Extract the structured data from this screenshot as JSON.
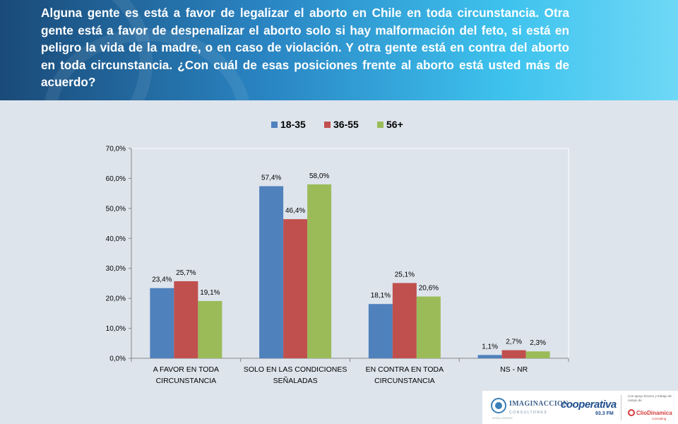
{
  "question": "Alguna gente es está a favor de legalizar el aborto en Chile en toda circunstancia. Otra gente está a favor de despenalizar el aborto solo si hay malformación del feto, si está en peligro la vida de la madre, o en caso de violación. Y otra gente está en contra del aborto en toda circunstancia. ¿Con cuál de esas posiciones frente al aborto está usted más de acuerdo?",
  "chart_data": {
    "type": "bar",
    "title": "",
    "xlabel": "",
    "ylabel": "",
    "categories": [
      [
        "A FAVOR EN TODA",
        "CIRCUNSTANCIA"
      ],
      [
        "SOLO EN LAS CONDICIONES",
        "SEÑALADAS"
      ],
      [
        "EN CONTRA EN TODA",
        "CIRCUNSTANCIA"
      ],
      [
        "NS - NR"
      ]
    ],
    "series": [
      {
        "name": "18-35",
        "color": "#4f81bd",
        "values": [
          23.4,
          57.4,
          18.1,
          1.1
        ],
        "labels": [
          "23,4%",
          "57,4%",
          "18,1%",
          "1,1%"
        ]
      },
      {
        "name": "36-55",
        "color": "#c0504d",
        "values": [
          25.7,
          46.4,
          25.1,
          2.7
        ],
        "labels": [
          "25,7%",
          "46,4%",
          "25,1%",
          "2,7%"
        ]
      },
      {
        "name": "56+",
        "color": "#9bbb59",
        "values": [
          19.1,
          58.0,
          20.6,
          2.3
        ],
        "labels": [
          "19,1%",
          "58,0%",
          "20,6%",
          "2,3%"
        ]
      }
    ],
    "ylim": [
      0,
      70
    ],
    "yticks": [
      {
        "value": 0,
        "label": "0,0%"
      },
      {
        "value": 10,
        "label": "10,0%"
      },
      {
        "value": 20,
        "label": "20,0%"
      },
      {
        "value": 30,
        "label": "30,0%"
      },
      {
        "value": 40,
        "label": "40,0%"
      },
      {
        "value": 50,
        "label": "50,0%"
      },
      {
        "value": 60,
        "label": "60,0%"
      },
      {
        "value": 70,
        "label": "70,0%"
      }
    ],
    "grid": false,
    "legend": "top"
  },
  "footer": {
    "imaginacion": "IMAGINACCION",
    "imaginacion_sub": "CONSULTORES",
    "imaginacion_foot": "INTELLIGENCE",
    "cooperativa": "cooperativa",
    "cooperativa_freq": "93.3 FM",
    "clio_note": "Con apoyo técnico y trabajo de campo de",
    "clio": "ClioDinamica",
    "clio_sub": "consulting",
    "icons": [
      "imaginacion-logo-icon",
      "clio-logo-icon"
    ]
  }
}
